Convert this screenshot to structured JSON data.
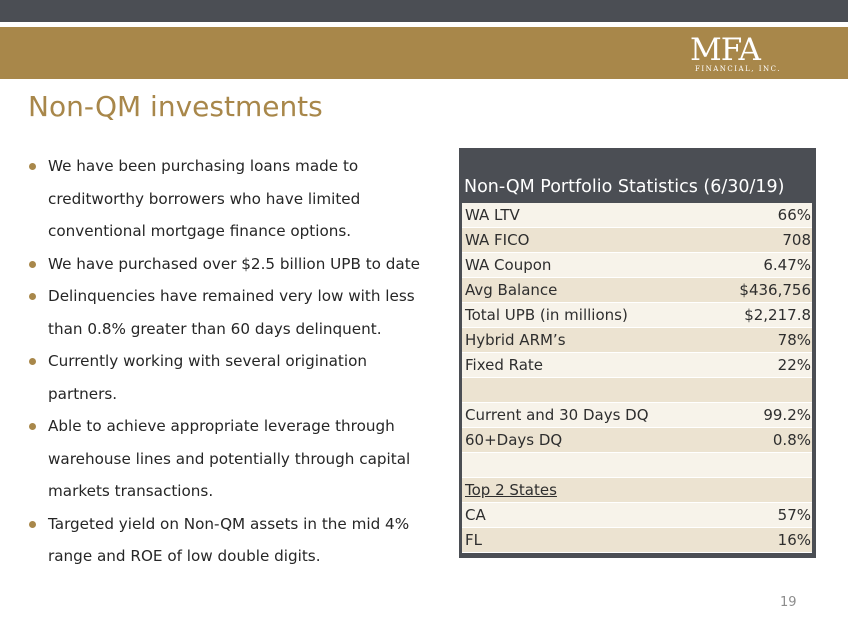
{
  "colors": {
    "gold": "#a8874a",
    "dark_bar": "#4b4e54",
    "row_light": "#f7f3ea",
    "row_dark": "#ece3d1"
  },
  "logo": {
    "main": "MFA",
    "sub": "FINANCIAL, INC."
  },
  "title": "Non-QM investments",
  "bullets": [
    "We have been purchasing loans made to creditworthy borrowers who have limited conventional mortgage finance options.",
    "We have purchased over $2.5 billion UPB to date",
    "Delinquencies have remained very low with less than 0.8% greater than 60 days delinquent.",
    "Currently working with several origination partners.",
    "Able to achieve appropriate leverage through warehouse lines and potentially through capital markets transactions.",
    "Targeted yield on Non-QM assets in the mid 4% range and ROE of low double digits."
  ],
  "table": {
    "title": "Non-QM Portfolio Statistics (6/30/19)",
    "rows": [
      {
        "label": "WA LTV",
        "value": "66%"
      },
      {
        "label": "WA FICO",
        "value": "708"
      },
      {
        "label": "WA Coupon",
        "value": "6.47%"
      },
      {
        "label": "Avg Balance",
        "value": "$436,756"
      },
      {
        "label": "Total UPB (in millions)",
        "value": "$2,217.8"
      },
      {
        "label": "Hybrid ARM’s",
        "value": "78%"
      },
      {
        "label": "Fixed Rate",
        "value": "22%"
      },
      {
        "label": "",
        "value": ""
      },
      {
        "label": "Current and 30 Days DQ",
        "value": "99.2%"
      },
      {
        "label": "60+Days DQ",
        "value": "0.8%"
      },
      {
        "label": "",
        "value": ""
      },
      {
        "label": "Top 2 States",
        "value": ""
      },
      {
        "label": "CA",
        "value": "57%"
      },
      {
        "label": "FL",
        "value": "16%"
      }
    ]
  },
  "page_number": "19"
}
